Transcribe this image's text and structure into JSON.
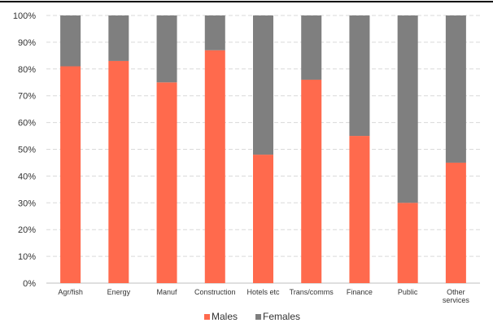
{
  "chart_data": {
    "type": "bar",
    "stacked": true,
    "percent": true,
    "categories": [
      "Agr/fish",
      "Energy",
      "Manuf",
      "Construction",
      "Hotels etc",
      "Trans/comms",
      "Finance",
      "Public",
      "Other services"
    ],
    "series": [
      {
        "name": "Males",
        "color": "#FF6A4D",
        "values": [
          81,
          83,
          75,
          87,
          48,
          76,
          55,
          30,
          45
        ]
      },
      {
        "name": "Females",
        "color": "#7F7F7F",
        "values": [
          19,
          17,
          25,
          13,
          52,
          24,
          45,
          70,
          55
        ]
      }
    ],
    "ylim": [
      0,
      100
    ],
    "yticks": [
      "0%",
      "10%",
      "20%",
      "30%",
      "40%",
      "50%",
      "60%",
      "70%",
      "80%",
      "90%",
      "100%"
    ],
    "title": "",
    "xlabel": "",
    "ylabel": "",
    "grid": true,
    "legend_position": "bottom"
  }
}
